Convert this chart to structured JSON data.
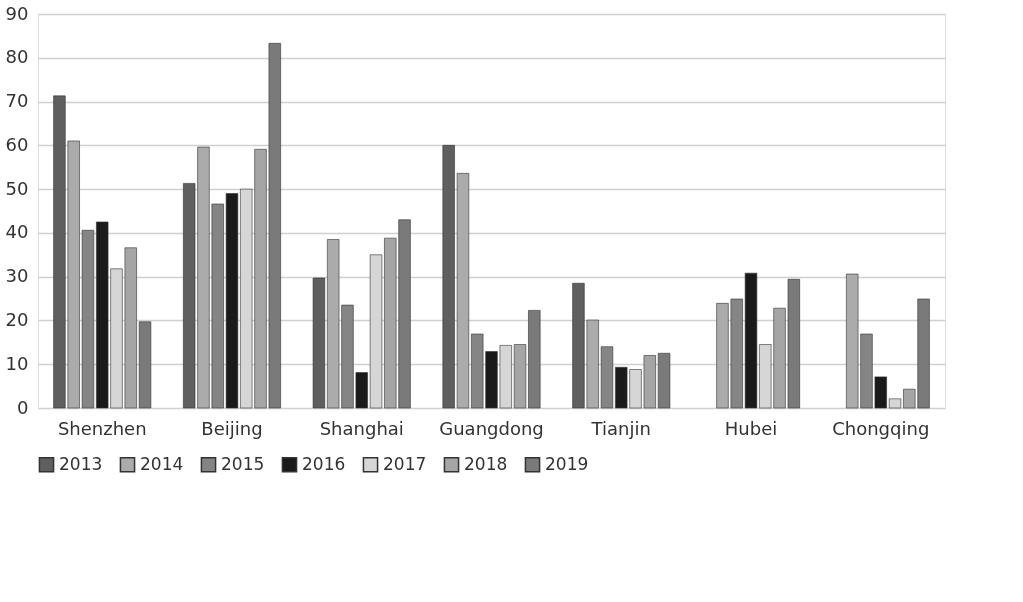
{
  "chart_data": {
    "type": "bar",
    "categories": [
      "Shenzhen",
      "Beijing",
      "Shanghai",
      "Guangdong",
      "Tianjin",
      "Hubei",
      "Chongqing"
    ],
    "series": [
      {
        "name": "2013",
        "color": "#5f5f5f",
        "values": [
          71.3,
          51.3,
          29.7,
          60.0,
          28.5,
          null,
          null
        ]
      },
      {
        "name": "2014",
        "color": "#ababab",
        "values": [
          61.0,
          59.6,
          38.5,
          53.6,
          20.1,
          23.9,
          30.6
        ]
      },
      {
        "name": "2015",
        "color": "#858585",
        "values": [
          40.6,
          46.6,
          23.5,
          16.9,
          14.0,
          24.9,
          16.9
        ]
      },
      {
        "name": "2016",
        "color": "#1a1a1a",
        "values": [
          42.5,
          49.0,
          8.1,
          12.9,
          9.3,
          30.8,
          7.1
        ]
      },
      {
        "name": "2017",
        "color": "#d6d6d6",
        "values": [
          31.8,
          50.0,
          35.0,
          14.3,
          8.8,
          14.5,
          2.1
        ]
      },
      {
        "name": "2018",
        "color": "#a5a5a5",
        "values": [
          36.6,
          59.1,
          38.8,
          14.5,
          12.0,
          22.8,
          4.3
        ]
      },
      {
        "name": "2019",
        "color": "#7a7a7a",
        "values": [
          19.7,
          83.3,
          43.0,
          22.3,
          12.5,
          29.4,
          24.9
        ]
      }
    ],
    "ylim": [
      0,
      90
    ],
    "yticks": [
      0,
      10,
      20,
      30,
      40,
      50,
      60,
      70,
      80,
      90
    ],
    "grid": "y",
    "legend": "bottom"
  }
}
